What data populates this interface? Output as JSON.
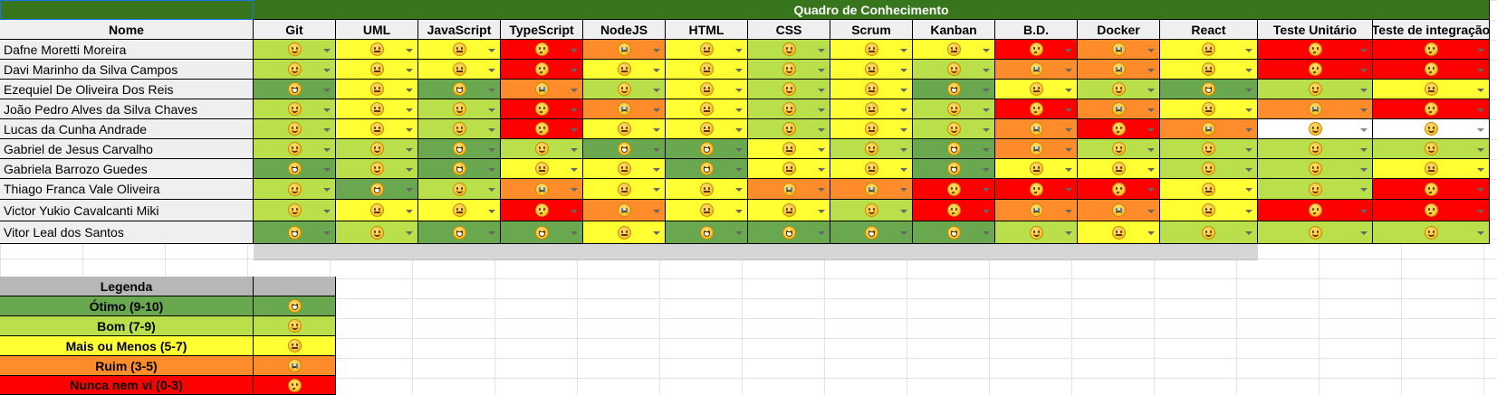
{
  "sheet": {
    "title": "Quadro de Conhecimento",
    "name_header": "Nome",
    "columns": [
      "Git",
      "UML",
      "JavaScript",
      "TypeScript",
      "NodeJS",
      "HTML",
      "CSS",
      "Scrum",
      "Kanban",
      "B.D.",
      "Docker",
      "React",
      "Teste Unitário",
      "Teste de integração"
    ],
    "level_colors": {
      "otimo": "#6aa84f",
      "bom": "#b9e04b",
      "meh": "#ffff33",
      "ruim": "#ff8c2a",
      "nunca": "#ff0000",
      "vazio": "#ffffff"
    },
    "rows": [
      {
        "name": "Dafne Moretti Moreira",
        "levels": [
          "bom",
          "meh",
          "meh",
          "nunca",
          "ruim",
          "meh",
          "bom",
          "meh",
          "meh",
          "nunca",
          "ruim",
          "meh",
          "nunca",
          "nunca"
        ]
      },
      {
        "name": "Davi Marinho da Silva Campos",
        "levels": [
          "bom",
          "meh",
          "meh",
          "nunca",
          "meh",
          "meh",
          "bom",
          "meh",
          "bom",
          "ruim",
          "ruim",
          "meh",
          "nunca",
          "nunca"
        ]
      },
      {
        "name": "Ezequiel De Oliveira Dos Reis",
        "levels": [
          "otimo",
          "meh",
          "otimo",
          "ruim",
          "bom",
          "meh",
          "bom",
          "meh",
          "otimo",
          "meh",
          "bom",
          "otimo",
          "bom",
          "meh"
        ]
      },
      {
        "name": "João Pedro Alves da Silva Chaves",
        "levels": [
          "bom",
          "meh",
          "bom",
          "nunca",
          "ruim",
          "meh",
          "bom",
          "meh",
          "bom",
          "nunca",
          "ruim",
          "meh",
          "ruim",
          "nunca"
        ]
      },
      {
        "name": "Lucas da Cunha Andrade",
        "levels": [
          "bom",
          "meh",
          "bom",
          "nunca",
          "meh",
          "meh",
          "bom",
          "meh",
          "bom",
          "ruim",
          "nunca",
          "ruim",
          "vazio",
          "vazio"
        ]
      },
      {
        "name": "Gabriel de Jesus Carvalho",
        "levels": [
          "bom",
          "bom",
          "otimo",
          "bom",
          "otimo",
          "otimo",
          "meh",
          "bom",
          "otimo",
          "ruim",
          "bom",
          "bom",
          "bom",
          "bom"
        ]
      },
      {
        "name": "Gabriela Barrozo Guedes",
        "levels": [
          "otimo",
          "bom",
          "otimo",
          "meh",
          "meh",
          "otimo",
          "meh",
          "meh",
          "otimo",
          "meh",
          "meh",
          "bom",
          "bom",
          "meh"
        ]
      },
      {
        "name": "Thiago Franca Vale Oliveira",
        "levels": [
          "bom",
          "otimo",
          "bom",
          "ruim",
          "meh",
          "meh",
          "ruim",
          "ruim",
          "nunca",
          "nunca",
          "nunca",
          "meh",
          "bom",
          "nunca"
        ]
      },
      {
        "name": "Victor Yukio Cavalcanti Miki",
        "levels": [
          "bom",
          "meh",
          "meh",
          "nunca",
          "ruim",
          "meh",
          "meh",
          "bom",
          "nunca",
          "ruim",
          "ruim",
          "meh",
          "nunca",
          "nunca"
        ]
      },
      {
        "name": "Vitor Leal dos Santos",
        "levels": [
          "otimo",
          "bom",
          "otimo",
          "otimo",
          "meh",
          "otimo",
          "otimo",
          "otimo",
          "otimo",
          "bom",
          "meh",
          "bom",
          "bom",
          "bom"
        ]
      }
    ]
  },
  "legend": {
    "header": "Legenda",
    "items": [
      {
        "key": "otimo",
        "label": "Ótimo (9-10)",
        "icon": "grinning-face-icon"
      },
      {
        "key": "bom",
        "label": "Bom (7-9)",
        "icon": "smiling-face-icon"
      },
      {
        "key": "meh",
        "label": "Mais ou Menos (5-7)",
        "icon": "neutral-face-icon"
      },
      {
        "key": "ruim",
        "label": "Ruim (3-5)",
        "icon": "crying-face-icon"
      },
      {
        "key": "nunca",
        "label": "Nunca nem vi (0-3)",
        "icon": "thinking-face-icon"
      }
    ]
  }
}
